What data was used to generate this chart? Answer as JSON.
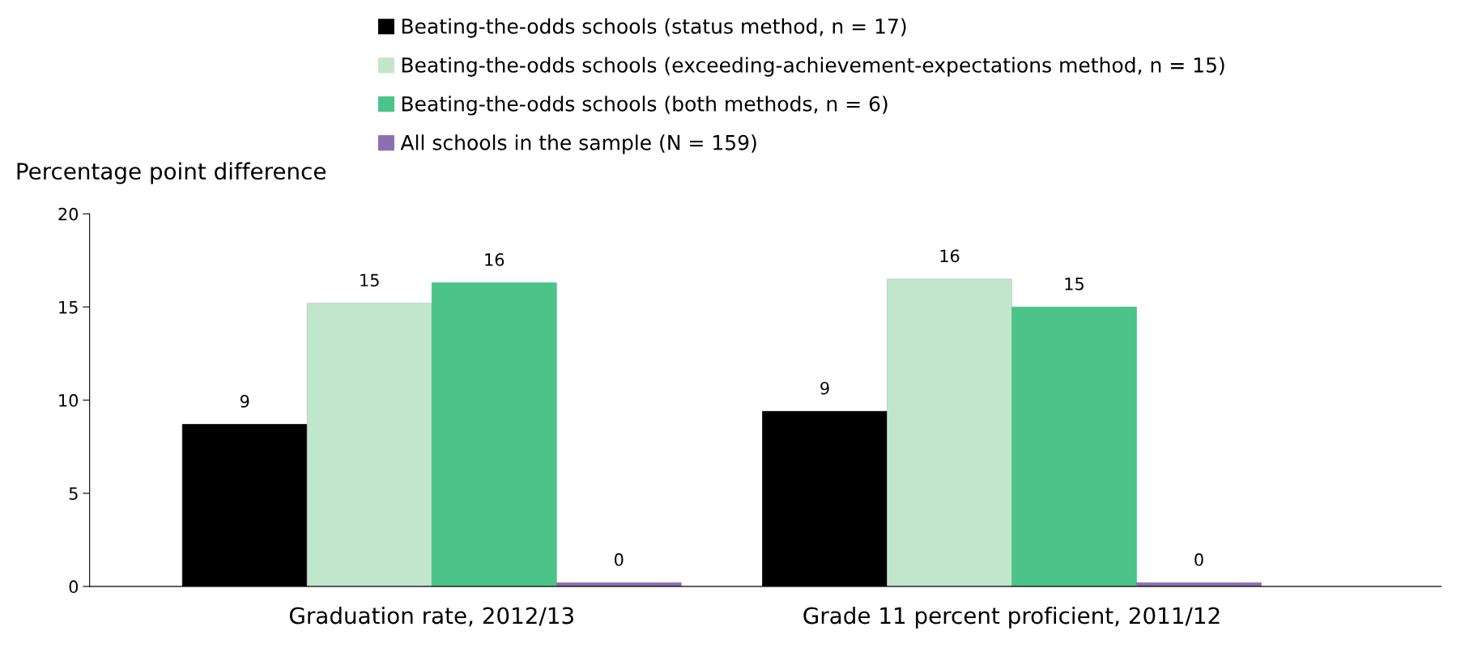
{
  "chart_data": {
    "type": "bar",
    "ylabel": "Percentage point difference",
    "categories": [
      "Graduation rate, 2012/13",
      "Grade 11 percent proficient, 2011/12"
    ],
    "series": [
      {
        "name": "Beating-the-odds schools (status method, n = 17)",
        "color": "#000000",
        "values": [
          8.7,
          9.4
        ],
        "value_labels": [
          "9",
          "9"
        ]
      },
      {
        "name": "Beating-the-odds schools (exceeding-achievement-expectations method, n = 15)",
        "color": "#c2e6cc",
        "values": [
          15.2,
          16.5
        ],
        "value_labels": [
          "15",
          "16"
        ]
      },
      {
        "name": "Beating-the-odds schools (both methods, n = 6)",
        "color": "#4bc38a",
        "values": [
          16.3,
          15.0
        ],
        "value_labels": [
          "16",
          "15"
        ]
      },
      {
        "name": "All schools in the sample (N = 159)",
        "color": "#8a70b0",
        "values": [
          0.2,
          0.2
        ],
        "value_labels": [
          "0",
          "0"
        ]
      }
    ],
    "ylim": [
      0,
      20
    ],
    "yticks": [
      0,
      5,
      10,
      15,
      20
    ],
    "grid": false,
    "legend": "top"
  }
}
